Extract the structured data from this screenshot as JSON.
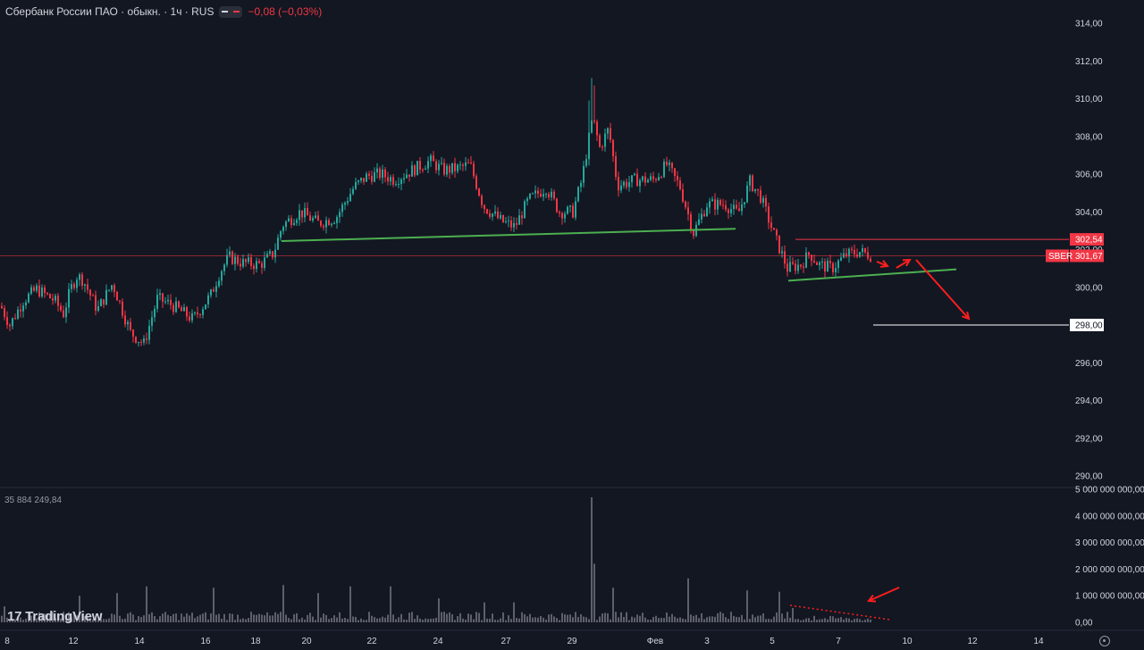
{
  "header": {
    "symbol_title": "Сбербанк России ПАО · обыкн. · 1ч · RUS",
    "change": "−0,08 (−0,03%)"
  },
  "branding": {
    "logo_text": "TradingView",
    "logo_icon": "tradingview-logo-icon"
  },
  "colors": {
    "background": "#131722",
    "up": "#26a69a",
    "down": "#f23645",
    "trendline": "#4caf50",
    "arrow": "#ff1e1e",
    "target_line": "#ffffff"
  },
  "chart_data": [
    {
      "type": "candlestick",
      "title": "",
      "symbol": "SBER",
      "interval": "1h",
      "x_tick_labels": [
        "8",
        "12",
        "14",
        "16",
        "18",
        "20",
        "22",
        "24",
        "27",
        "29",
        "Фев",
        "3",
        "5",
        "7",
        "10",
        "12",
        "14"
      ],
      "y_tick_labels": [
        "314,00",
        "312,00",
        "310,00",
        "308,00",
        "306,00",
        "304,00",
        "302,00",
        "300,00",
        "298,00",
        "296,00",
        "294,00",
        "292,00",
        "290,00"
      ],
      "ylim": [
        289.4,
        314.5
      ],
      "price_anchors": [
        [
          0,
          299.0
        ],
        [
          10,
          298.0
        ],
        [
          25,
          299.3
        ],
        [
          40,
          299.9
        ],
        [
          60,
          299.3
        ],
        [
          70,
          298.6
        ],
        [
          78,
          299.9
        ],
        [
          85,
          300.6
        ],
        [
          92,
          300.4
        ],
        [
          108,
          298.8
        ],
        [
          125,
          300.2
        ],
        [
          145,
          297.6
        ],
        [
          160,
          297.0
        ],
        [
          175,
          299.4
        ],
        [
          190,
          299.1
        ],
        [
          215,
          298.3
        ],
        [
          235,
          299.6
        ],
        [
          245,
          300.8
        ],
        [
          255,
          301.6
        ],
        [
          270,
          301.3
        ],
        [
          290,
          301.2
        ],
        [
          305,
          301.8
        ],
        [
          315,
          303.3
        ],
        [
          335,
          304.0
        ],
        [
          355,
          303.4
        ],
        [
          375,
          303.7
        ],
        [
          395,
          305.3
        ],
        [
          410,
          305.9
        ],
        [
          425,
          306.0
        ],
        [
          440,
          305.7
        ],
        [
          460,
          306.2
        ],
        [
          480,
          306.7
        ],
        [
          495,
          306.2
        ],
        [
          510,
          306.3
        ],
        [
          525,
          306.5
        ],
        [
          540,
          304.3
        ],
        [
          560,
          303.5
        ],
        [
          575,
          303.2
        ],
        [
          590,
          304.6
        ],
        [
          610,
          305.3
        ],
        [
          625,
          304.0
        ],
        [
          640,
          304.0
        ],
        [
          650,
          305.7
        ],
        [
          662,
          309.0
        ],
        [
          670,
          307.4
        ],
        [
          680,
          308.4
        ],
        [
          690,
          305.4
        ],
        [
          710,
          305.7
        ],
        [
          730,
          305.7
        ],
        [
          745,
          306.5
        ],
        [
          760,
          305.3
        ],
        [
          775,
          302.9
        ],
        [
          790,
          304.4
        ],
        [
          810,
          304.4
        ],
        [
          825,
          303.9
        ],
        [
          838,
          305.6
        ],
        [
          850,
          304.8
        ],
        [
          865,
          302.8
        ],
        [
          880,
          301.0
        ],
        [
          895,
          301.2
        ],
        [
          905,
          301.8
        ],
        [
          915,
          301.2
        ],
        [
          930,
          301.0
        ],
        [
          945,
          301.7
        ],
        [
          960,
          301.9
        ],
        [
          975,
          301.67
        ]
      ],
      "key_levels": [
        {
          "label": "SBER",
          "value": 301.67
        },
        {
          "label": "",
          "value": 302.54
        },
        {
          "label": "",
          "value": 298.0
        }
      ],
      "trendlines": [
        {
          "from": [
            315,
            302.45
          ],
          "to": [
            823,
            303.1
          ]
        },
        {
          "from": [
            882,
            300.35
          ],
          "to": [
            1070,
            300.95
          ]
        }
      ]
    },
    {
      "type": "bar",
      "title": "Volume",
      "value_label": "35 884 249,84",
      "y_tick_labels": [
        "5 000 000 000,00",
        "4 000 000 000,00",
        "3 000 000 000,00",
        "2 000 000 000,00",
        "1 000 000 000,00",
        "0,00"
      ],
      "ylim": [
        0,
        5000000000
      ],
      "spikes": [
        [
          5,
          600000000
        ],
        [
          88,
          1000000000
        ],
        [
          130,
          1100000000
        ],
        [
          163,
          1350000000
        ],
        [
          237,
          1300000000
        ],
        [
          315,
          1400000000
        ],
        [
          355,
          1100000000
        ],
        [
          390,
          1350000000
        ],
        [
          437,
          1350000000
        ],
        [
          490,
          900000000
        ],
        [
          540,
          750000000
        ],
        [
          575,
          750000000
        ],
        [
          661,
          4700000000
        ],
        [
          663,
          2200000000
        ],
        [
          685,
          1300000000
        ],
        [
          768,
          1650000000
        ],
        [
          835,
          1200000000
        ],
        [
          871,
          1150000000
        ],
        [
          885,
          900000000
        ],
        [
          910,
          400000000
        ],
        [
          965,
          100000000
        ]
      ]
    }
  ]
}
